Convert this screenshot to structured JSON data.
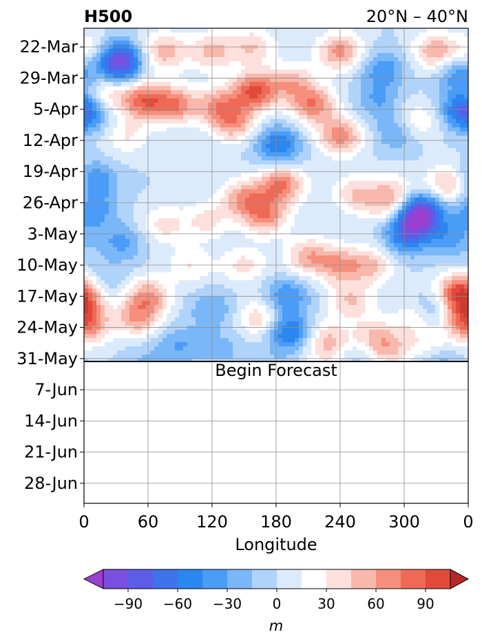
{
  "chart_data": {
    "type": "heatmap",
    "title_left": "H500",
    "title_right": "20°N – 40°N",
    "xlabel": "Longitude",
    "x_ticks": [
      "0",
      "60",
      "120",
      "180",
      "240",
      "300",
      "0"
    ],
    "x_tick_values": [
      0,
      60,
      120,
      180,
      240,
      300,
      360
    ],
    "xlim": [
      0,
      360
    ],
    "y_ticks": [
      "22-Mar",
      "29-Mar",
      "5-Apr",
      "12-Apr",
      "19-Apr",
      "26-Apr",
      "3-May",
      "10-May",
      "17-May",
      "24-May",
      "31-May",
      "7-Jun",
      "14-Jun",
      "21-Jun",
      "28-Jun"
    ],
    "y_tick_days": [
      0,
      7,
      14,
      21,
      28,
      35,
      42,
      49,
      56,
      63,
      70,
      77,
      84,
      91,
      98
    ],
    "ylim_days": [
      -4.2,
      102.5
    ],
    "forecast_line_day": 70,
    "forecast_label": "Begin Forecast",
    "grid": true,
    "colorbar": {
      "label": "m",
      "ticks": [
        "−90",
        "−60",
        "−30",
        "0",
        "30",
        "60",
        "90"
      ],
      "tick_values": [
        -90,
        -60,
        -30,
        0,
        30,
        60,
        90
      ],
      "levels": [
        -105,
        -90,
        -75,
        -60,
        -45,
        -30,
        -15,
        0,
        15,
        30,
        45,
        60,
        75,
        90,
        105
      ],
      "colors": [
        "#9a3fd0",
        "#7a4ede",
        "#5b5de8",
        "#3f73ec",
        "#2b86f0",
        "#4a9cf6",
        "#7ab7f9",
        "#b0d3fb",
        "#dcebfc",
        "#ffffff",
        "#fde0dc",
        "#f9b8ac",
        "#f58f7c",
        "#ef6a56",
        "#e14a3a",
        "#cc3a32",
        "#b8272a"
      ],
      "extend": "both"
    },
    "anomaly_centers": [
      {
        "lon": 10,
        "day": 1,
        "value": 40
      },
      {
        "lon": 28,
        "day": 2,
        "value": -55
      },
      {
        "lon": 35,
        "day": 4,
        "value": -65
      },
      {
        "lon": 75,
        "day": 1,
        "value": 55
      },
      {
        "lon": 120,
        "day": 1,
        "value": 50
      },
      {
        "lon": 158,
        "day": 0,
        "value": 45
      },
      {
        "lon": 240,
        "day": 1,
        "value": 65
      },
      {
        "lon": 280,
        "day": 5,
        "value": -40
      },
      {
        "lon": 330,
        "day": 1,
        "value": 60
      },
      {
        "lon": 352,
        "day": 6,
        "value": -45
      },
      {
        "lon": 18,
        "day": 11,
        "value": 40
      },
      {
        "lon": 55,
        "day": 12,
        "value": 80
      },
      {
        "lon": 85,
        "day": 13,
        "value": 70
      },
      {
        "lon": 160,
        "day": 10,
        "value": 90
      },
      {
        "lon": 125,
        "day": 13,
        "value": 55
      },
      {
        "lon": 215,
        "day": 13,
        "value": 70
      },
      {
        "lon": 195,
        "day": 8,
        "value": 50
      },
      {
        "lon": 275,
        "day": 12,
        "value": -30
      },
      {
        "lon": 310,
        "day": 17,
        "value": 40
      },
      {
        "lon": 356,
        "day": 14,
        "value": -55
      },
      {
        "lon": 3,
        "day": 15,
        "value": -35
      },
      {
        "lon": 140,
        "day": 17,
        "value": 60
      },
      {
        "lon": 240,
        "day": 20,
        "value": 70
      },
      {
        "lon": 182,
        "day": 22,
        "value": -60
      },
      {
        "lon": 295,
        "day": 19,
        "value": -40
      },
      {
        "lon": 40,
        "day": 20,
        "value": 30
      },
      {
        "lon": 10,
        "day": 30,
        "value": -45
      },
      {
        "lon": 8,
        "day": 37,
        "value": -40
      },
      {
        "lon": 185,
        "day": 31,
        "value": 75
      },
      {
        "lon": 150,
        "day": 34,
        "value": 60
      },
      {
        "lon": 170,
        "day": 38,
        "value": 65
      },
      {
        "lon": 255,
        "day": 33,
        "value": 45
      },
      {
        "lon": 290,
        "day": 33,
        "value": 40
      },
      {
        "lon": 340,
        "day": 31,
        "value": 55
      },
      {
        "lon": 285,
        "day": 36,
        "value": 30
      },
      {
        "lon": 310,
        "day": 39,
        "value": -80
      },
      {
        "lon": 318,
        "day": 36,
        "value": -60
      },
      {
        "lon": 300,
        "day": 43,
        "value": -45
      },
      {
        "lon": 342,
        "day": 43,
        "value": -35
      },
      {
        "lon": 115,
        "day": 39,
        "value": 35
      },
      {
        "lon": 35,
        "day": 44,
        "value": -35
      },
      {
        "lon": 75,
        "day": 40,
        "value": 35
      },
      {
        "lon": 210,
        "day": 47,
        "value": 55
      },
      {
        "lon": 240,
        "day": 49,
        "value": 55
      },
      {
        "lon": 270,
        "day": 49,
        "value": 45
      },
      {
        "lon": 150,
        "day": 49,
        "value": 35
      },
      {
        "lon": 100,
        "day": 49,
        "value": 30
      },
      {
        "lon": 15,
        "day": 53,
        "value": -30
      },
      {
        "lon": 2,
        "day": 55,
        "value": 45
      },
      {
        "lon": 3,
        "day": 63,
        "value": 50
      },
      {
        "lon": 60,
        "day": 56,
        "value": 60
      },
      {
        "lon": 50,
        "day": 61,
        "value": 55
      },
      {
        "lon": 190,
        "day": 56,
        "value": -45
      },
      {
        "lon": 192,
        "day": 64,
        "value": -65
      },
      {
        "lon": 165,
        "day": 61,
        "value": 45
      },
      {
        "lon": 120,
        "day": 59,
        "value": -30
      },
      {
        "lon": 250,
        "day": 57,
        "value": 45
      },
      {
        "lon": 228,
        "day": 66,
        "value": 50
      },
      {
        "lon": 270,
        "day": 65,
        "value": 40
      },
      {
        "lon": 310,
        "day": 61,
        "value": 30
      },
      {
        "lon": 330,
        "day": 59,
        "value": -35
      },
      {
        "lon": 350,
        "day": 55,
        "value": 70
      },
      {
        "lon": 356,
        "day": 60,
        "value": 60
      },
      {
        "lon": 285,
        "day": 68,
        "value": 45
      },
      {
        "lon": 325,
        "day": 68,
        "value": 45
      },
      {
        "lon": 90,
        "day": 67,
        "value": -30
      },
      {
        "lon": 130,
        "day": 68,
        "value": -20
      },
      {
        "lon": 260,
        "day": 69,
        "value": -20
      },
      {
        "lon": 330,
        "day": 70,
        "value": -45
      },
      {
        "lon": 175,
        "day": 73,
        "value": -15
      },
      {
        "lon": 60,
        "day": 71,
        "value": -18
      },
      {
        "lon": 225,
        "day": 72,
        "value": 18
      }
    ]
  }
}
